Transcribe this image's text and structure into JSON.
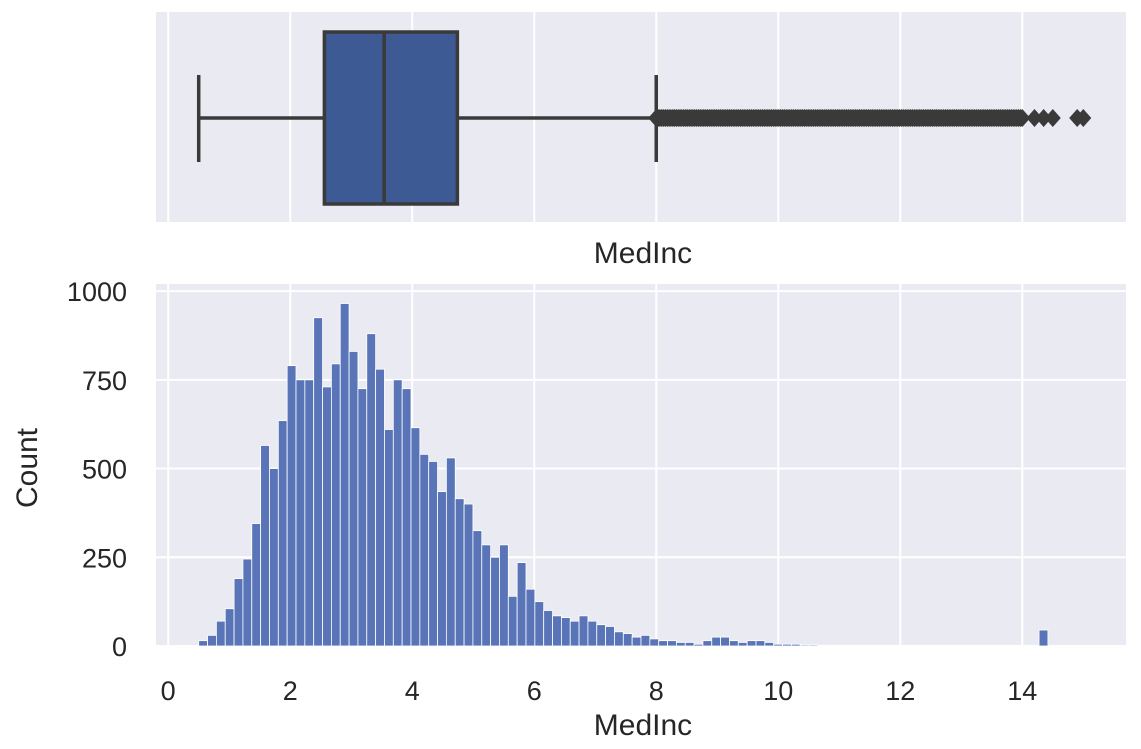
{
  "chart_data": [
    {
      "type": "box",
      "xlabel": "MedInc",
      "xlim": [
        -0.2,
        15.7
      ],
      "grid": true,
      "color": "#3d5a94",
      "whisker_low": 0.5,
      "q1": 2.56,
      "median": 3.54,
      "q3": 4.74,
      "whisker_high": 8.0,
      "outlier_range": [
        8.0,
        14.0
      ],
      "outliers_isolated": [
        14.2,
        14.35,
        14.5,
        14.9,
        15.0
      ],
      "xticks": [
        0,
        2,
        4,
        6,
        8,
        10,
        12,
        14
      ]
    },
    {
      "type": "histogram",
      "xlabel": "MedInc",
      "ylabel": "Count",
      "xlim": [
        -0.2,
        15.7
      ],
      "ylim": [
        0,
        1020
      ],
      "grid": true,
      "color": "#5975b8",
      "xticks": [
        0,
        2,
        4,
        6,
        8,
        10,
        12,
        14
      ],
      "xtick_labels": [
        "0",
        "2",
        "4",
        "6",
        "8",
        "10",
        "12",
        "14"
      ],
      "yticks": [
        0,
        250,
        500,
        750,
        1000
      ],
      "ytick_labels": [
        "0",
        "250",
        "500",
        "750",
        "1000"
      ],
      "bin_start": 0.5,
      "bin_width": 0.145,
      "counts": [
        15,
        30,
        70,
        105,
        190,
        245,
        345,
        565,
        500,
        635,
        790,
        750,
        750,
        925,
        730,
        795,
        965,
        830,
        725,
        880,
        780,
        610,
        750,
        725,
        615,
        540,
        520,
        435,
        530,
        415,
        400,
        325,
        285,
        250,
        285,
        140,
        235,
        160,
        125,
        100,
        85,
        80,
        70,
        85,
        70,
        60,
        55,
        40,
        35,
        25,
        30,
        20,
        15,
        15,
        10,
        10,
        5,
        15,
        25,
        25,
        15,
        10,
        15,
        15,
        10,
        5,
        5,
        5,
        3,
        3,
        2,
        2,
        2,
        2,
        2,
        2,
        2,
        2,
        2,
        2,
        2,
        2,
        2,
        2,
        2,
        2,
        2,
        2,
        2,
        2,
        2,
        2,
        2,
        2,
        2,
        45
      ]
    }
  ]
}
